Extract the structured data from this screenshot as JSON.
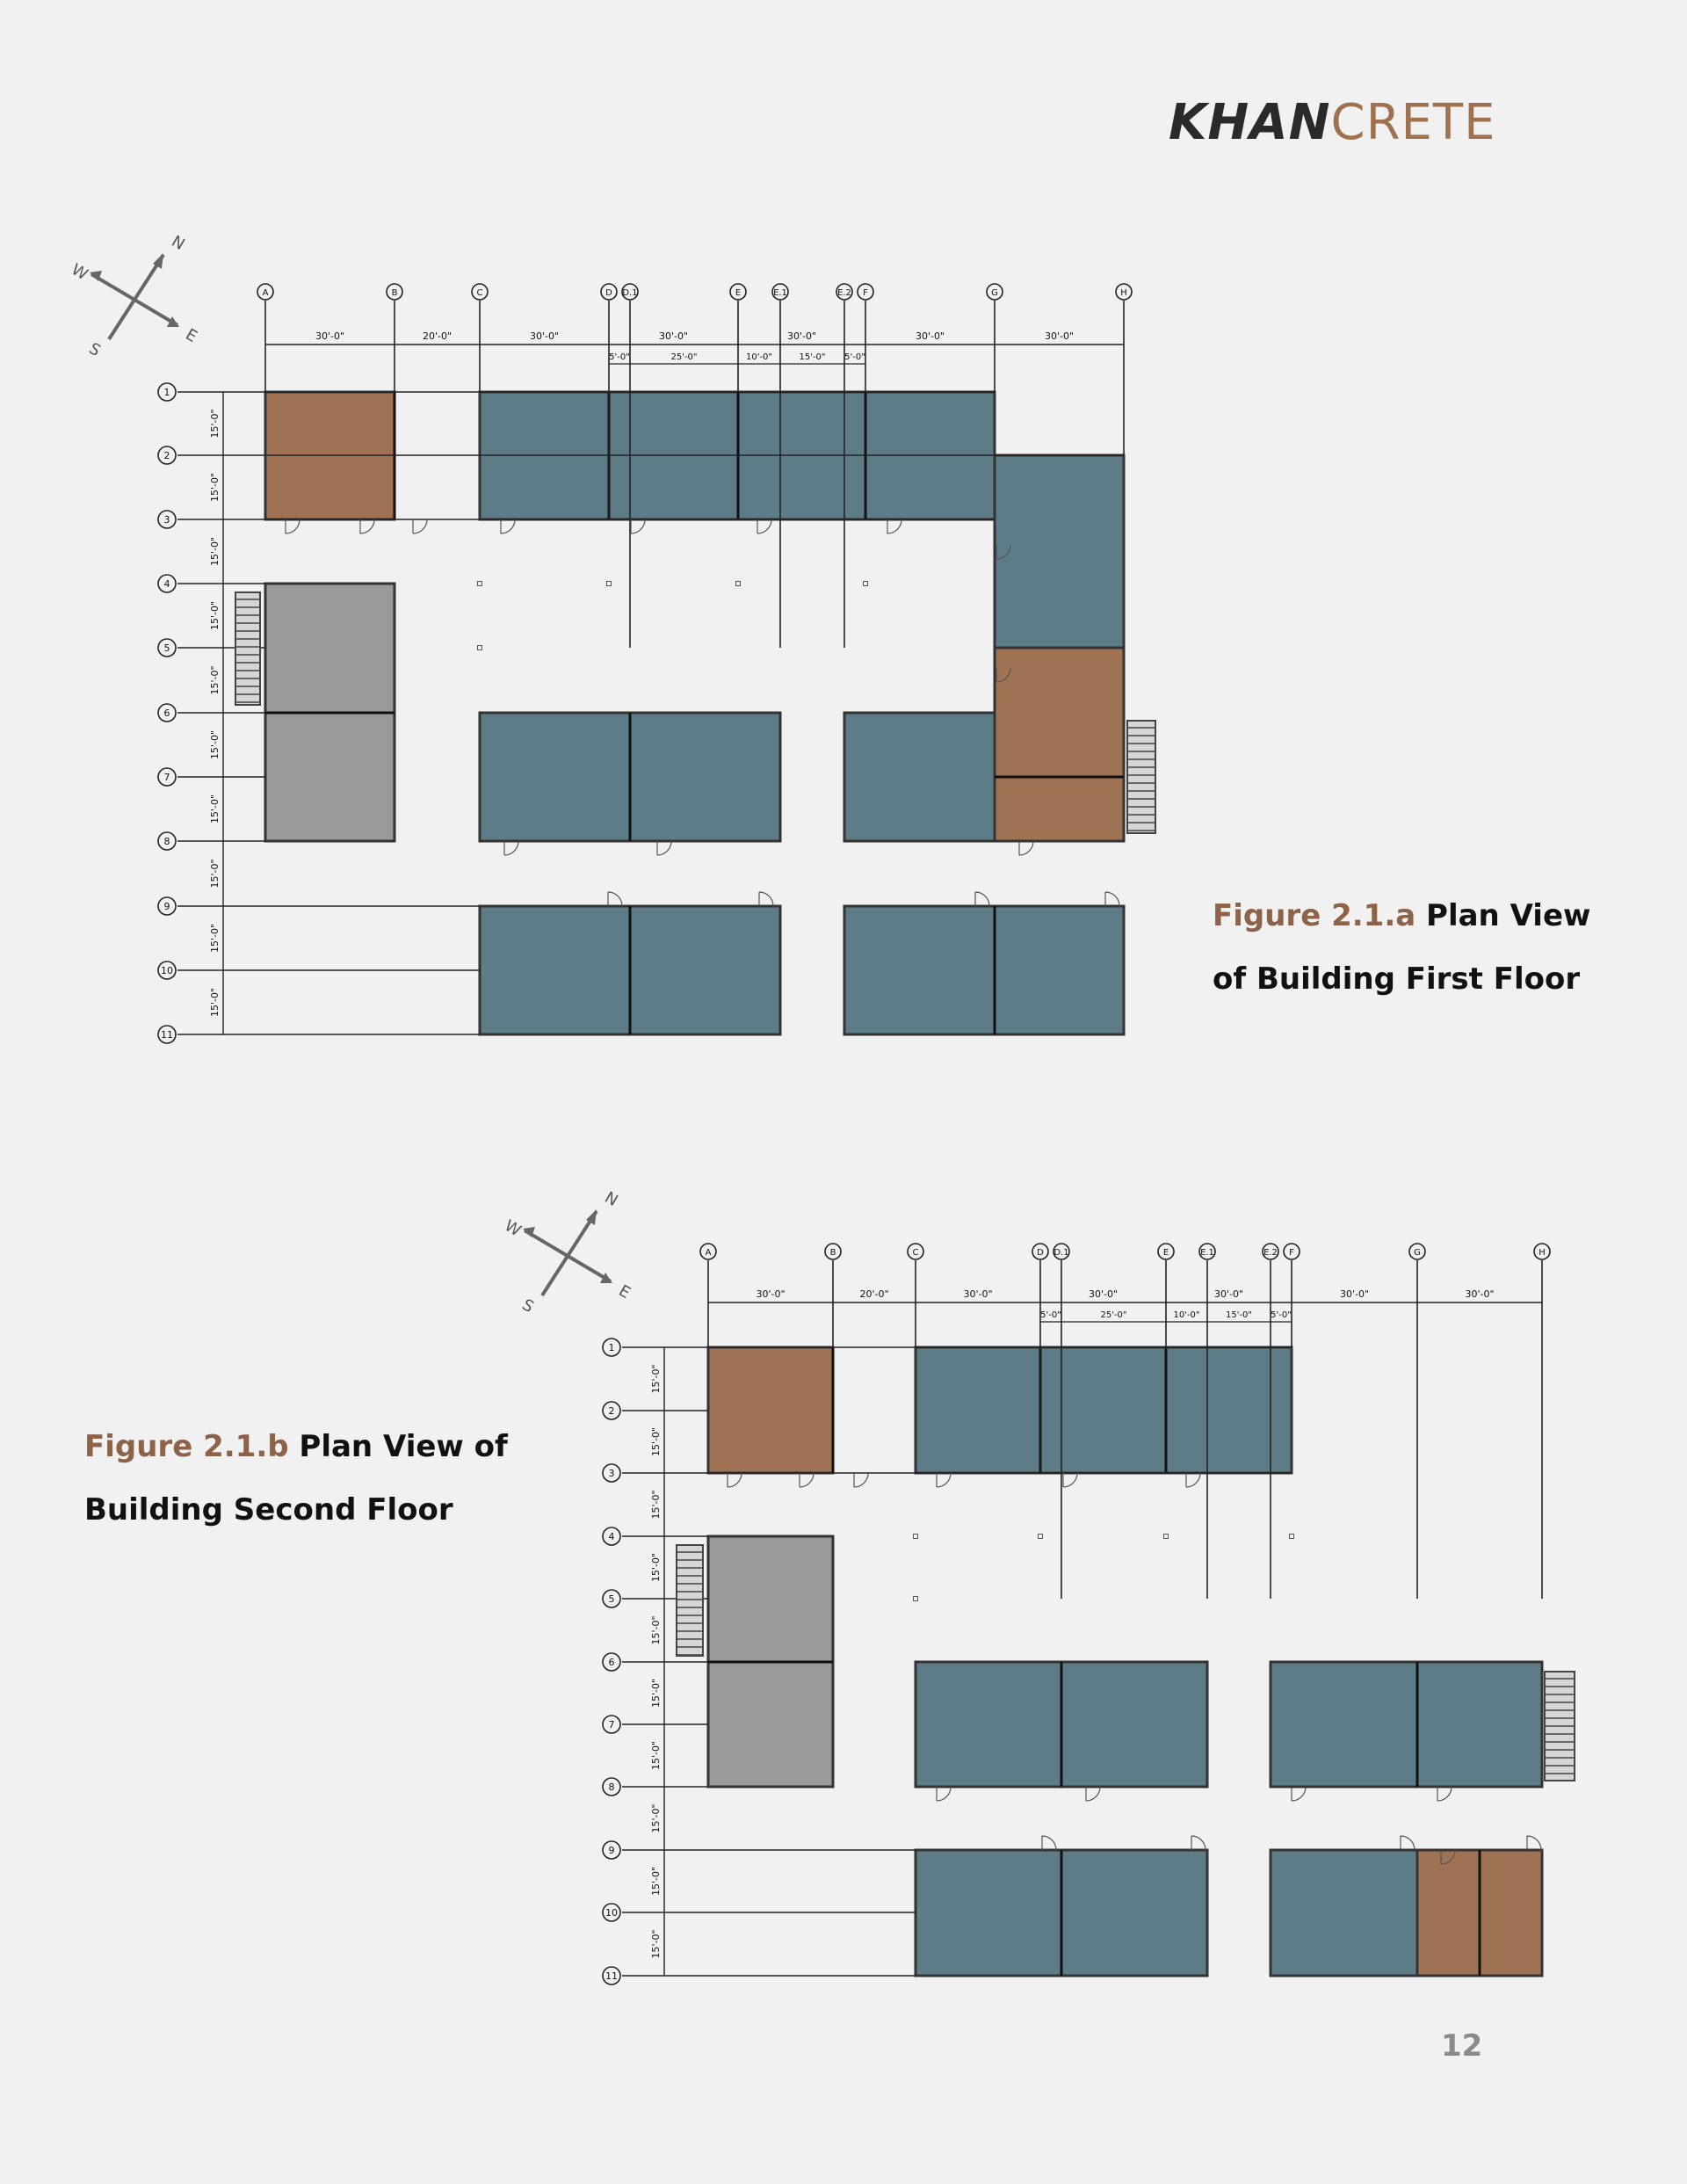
{
  "brand": {
    "part1": "KHAN",
    "part2": "CRETE",
    "accent_color": "#a0714f"
  },
  "page_number": "12",
  "colors": {
    "blue": "#5e7c88",
    "brown": "#a07254",
    "gray": "#9a9a9a",
    "stair": "#d6d6d6",
    "line": "#222222"
  },
  "compass": {
    "n": "N",
    "e": "E",
    "s": "S",
    "w": "W"
  },
  "figures": [
    {
      "id": "first-floor",
      "fig_label": "Figure 2.1.a",
      "title_line1": " Plan View",
      "title_line2": "of Building First Floor",
      "col_labels": [
        "A",
        "B",
        "C",
        "D",
        "D.1",
        "E",
        "E.1",
        "E.2",
        "F",
        "G",
        "H"
      ],
      "row_labels": [
        "1",
        "2",
        "3",
        "4",
        "5",
        "6",
        "7",
        "8",
        "9",
        "10",
        "11"
      ],
      "top_dims": [
        "30'-0\"",
        "20'-0\"",
        "30'-0\"",
        "30'-0\"",
        "30'-0\"",
        "30'-0\"",
        "30'-0\""
      ],
      "sub_dims": [
        "5'-0\"",
        "25'-0\"",
        "10'-0\"",
        "15'-0\"",
        "5'-0\""
      ],
      "row_dim": "15'-0\""
    },
    {
      "id": "second-floor",
      "fig_label": "Figure 2.1.b",
      "title_line1": " Plan View of",
      "title_line2": "Building Second Floor",
      "col_labels": [
        "A",
        "B",
        "C",
        "D",
        "D.1",
        "E",
        "E.1",
        "E.2",
        "F",
        "G",
        "H"
      ],
      "row_labels": [
        "1",
        "2",
        "3",
        "4",
        "5",
        "6",
        "7",
        "8",
        "9",
        "10",
        "11"
      ],
      "top_dims": [
        "30'-0\"",
        "20'-0\"",
        "30'-0\"",
        "30'-0\"",
        "30'-0\"",
        "30'-0\"",
        "30'-0\""
      ],
      "sub_dims": [
        "5'-0\"",
        "25'-0\"",
        "10'-0\"",
        "15'-0\"",
        "5'-0\""
      ],
      "row_dim": "15'-0\""
    }
  ]
}
